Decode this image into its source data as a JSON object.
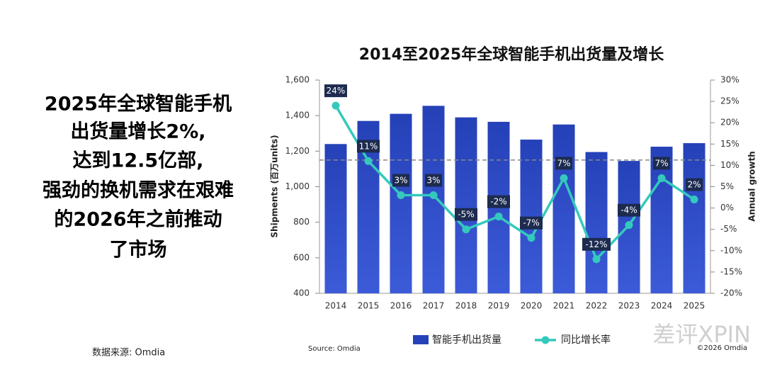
{
  "headline": [
    "2025年全球智能手机",
    "出货量增长2%,",
    "达到12.5亿部,",
    "强劲的换机需求在艰难",
    "的2026年之前推动",
    "了市场"
  ],
  "data_source": "数据来源: Omdia",
  "watermark": "差评XPIN",
  "chart_data": {
    "type": "bar_line",
    "title": "2014至2025年全球智能手机出货量及增长",
    "y_label": "Shipments (百万units)",
    "y2_label": "Annual growth",
    "source": "Source: Omdia",
    "copyright": "©2026 Omdia",
    "categories": [
      "2014",
      "2015",
      "2016",
      "2017",
      "2018",
      "2019",
      "2020",
      "2021",
      "2022",
      "2023",
      "2024",
      "2025"
    ],
    "series": [
      {
        "name": "智能手机出货量",
        "color": "#2541b8",
        "values": [
          1240,
          1370,
          1410,
          1455,
          1390,
          1365,
          1265,
          1350,
          1195,
          1145,
          1225,
          1245
        ]
      },
      {
        "name": "同比增长率",
        "color": "#35c9bd",
        "axis": "y2",
        "values": [
          24,
          11,
          3,
          3,
          -5,
          -2,
          -7,
          7,
          -12,
          -4,
          7,
          2
        ],
        "value_labels": [
          "24%",
          "11%",
          "3%",
          "3%",
          "-5%",
          "-2%",
          "-7%",
          "7%",
          "-12%",
          "-4%",
          "7%",
          "2%"
        ]
      }
    ],
    "reference_line": 1150,
    "ylim": [
      400,
      1600
    ],
    "yticks": [
      400,
      600,
      800,
      {
        "value": 1000,
        "label": "1,000"
      },
      {
        "value": 1200,
        "label": "1,200"
      },
      {
        "value": 1400,
        "label": "1,400"
      },
      {
        "value": 1600,
        "label": "1,600"
      }
    ],
    "y2lim": [
      -20,
      30
    ],
    "y2ticks": [
      {
        "value": -20,
        "label": "-20%"
      },
      {
        "value": -15,
        "label": "-15%"
      },
      {
        "value": -10,
        "label": "-10%"
      },
      {
        "value": -5,
        "label": "-5%"
      },
      {
        "value": 0,
        "label": "0%"
      },
      {
        "value": 5,
        "label": "5%"
      },
      {
        "value": 10,
        "label": "10%"
      },
      {
        "value": 15,
        "label": "15%"
      },
      {
        "value": 20,
        "label": "20%"
      },
      {
        "value": 25,
        "label": "25%"
      },
      {
        "value": 30,
        "label": "30%"
      }
    ]
  }
}
